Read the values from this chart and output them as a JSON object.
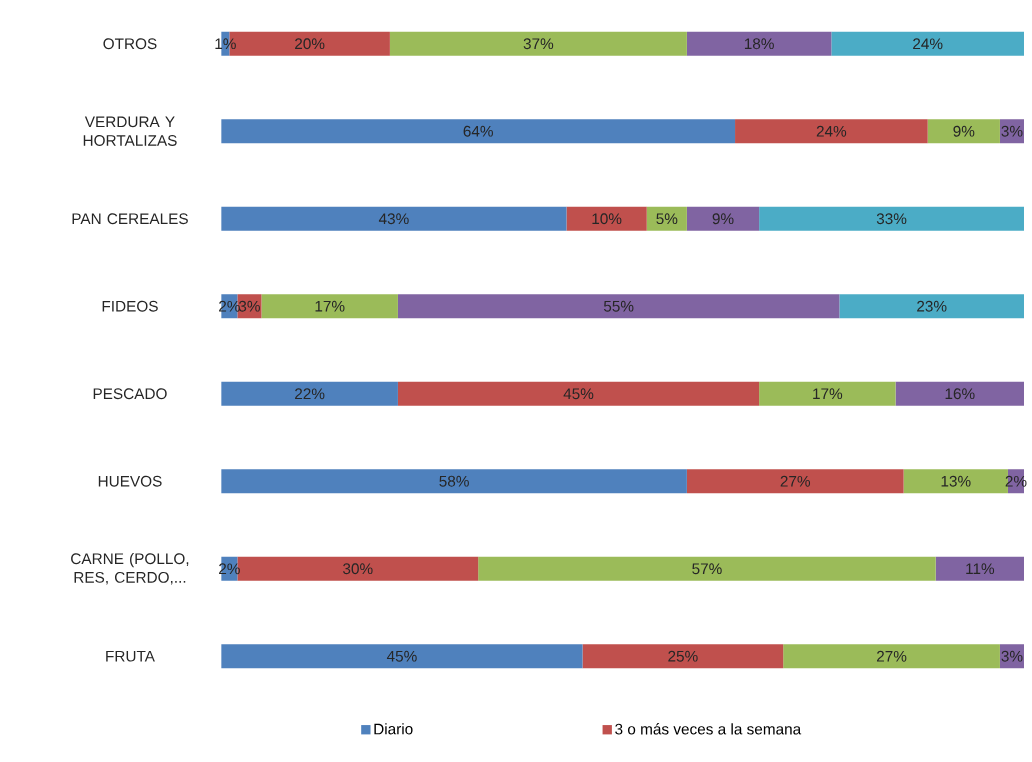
{
  "chart_data": {
    "type": "bar",
    "orientation": "horizontal",
    "stacked": true,
    "legend": "bottom",
    "categories": [
      "OTROS",
      "VERDURA Y HORTALIZAS",
      "PAN CEREALES",
      "FIDEOS",
      "PESCADO",
      "HUEVOS",
      "CARNE (POLLO, RES, CERDO,...",
      "FRUTA"
    ],
    "xlim": [
      0,
      100
    ],
    "series": [
      {
        "name": "Diario",
        "color": "#4f81bd",
        "values": [
          1,
          64,
          43,
          2,
          22,
          58,
          2,
          45
        ],
        "value_labels": [
          "1%",
          "64%",
          "43%",
          "2%",
          "22%",
          "58%",
          "2%",
          "45%"
        ]
      },
      {
        "name": "3 o más veces a la semana",
        "color": "#c0504d",
        "values": [
          20,
          24,
          10,
          3,
          45,
          27,
          30,
          25
        ],
        "value_labels": [
          "20%",
          "24%",
          "10%",
          "3%",
          "45%",
          "27%",
          "30%",
          "25%"
        ]
      },
      {
        "color": "#9bbb59",
        "values": [
          37,
          9,
          5,
          17,
          17,
          13,
          57,
          27
        ],
        "value_labels": [
          "37%",
          "9%",
          "5%",
          "17%",
          "17%",
          "13%",
          "57%",
          "27%"
        ]
      },
      {
        "color": "#8064a2",
        "values": [
          18,
          3,
          9,
          55,
          16,
          2,
          11,
          3
        ],
        "value_labels": [
          "18%",
          "3%",
          "9%",
          "55%",
          "16%",
          "2%",
          "11%",
          "3%"
        ]
      },
      {
        "color": "#4bacc6",
        "values": [
          24,
          null,
          33,
          23,
          null,
          null,
          null,
          null
        ],
        "value_labels": [
          "24%",
          null,
          "33%",
          "23%",
          null,
          null,
          null,
          null
        ]
      }
    ]
  }
}
